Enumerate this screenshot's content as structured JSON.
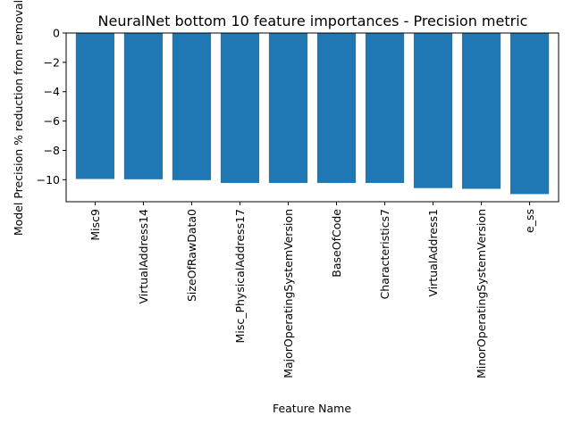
{
  "chart_data": {
    "type": "bar",
    "title": "NeuralNet bottom 10 feature importances - Precision metric",
    "xlabel": "Feature Name",
    "ylabel": "Model Precision % reduction from removal",
    "categories": [
      "Misc9",
      "VirtualAddress14",
      "SizeOfRawData0",
      "Misc_PhysicalAddress17",
      "MajorOperatingSystemVersion",
      "BaseOfCode",
      "Characteristics7",
      "VirtualAddress1",
      "MinorOperatingSystemVersion",
      "e_ss"
    ],
    "values": [
      -9.95,
      -9.97,
      -10.03,
      -10.22,
      -10.22,
      -10.22,
      -10.22,
      -10.57,
      -10.62,
      -10.98
    ],
    "ylim": [
      -11.5,
      0
    ],
    "yticks": [
      0,
      -2,
      -4,
      -6,
      -8,
      -10
    ],
    "ytick_labels": [
      "0",
      "−2",
      "−4",
      "−6",
      "−8",
      "−10"
    ],
    "bar_color": "#1f77b4",
    "grid": false,
    "legend": "none"
  }
}
